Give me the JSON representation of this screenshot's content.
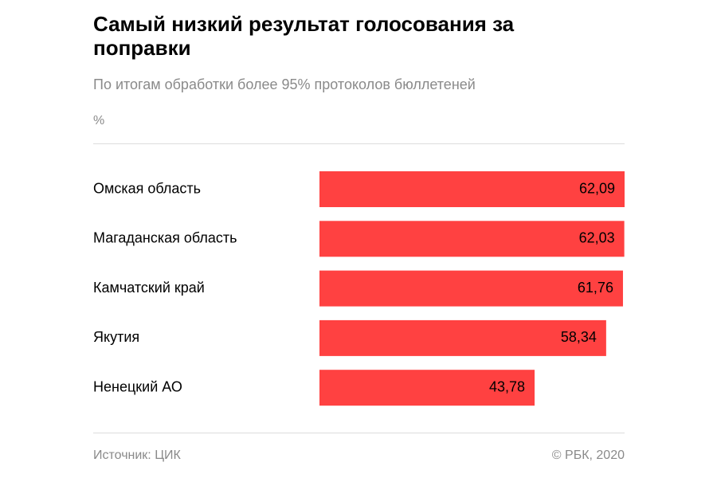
{
  "header": {
    "title": "Самый низкий результат голосования за поправки",
    "subtitle": "По итогам обработки более 95% протоколов бюллетеней",
    "unit": "%"
  },
  "footer": {
    "source": "Источник: ЦИК",
    "copyright": "© РБК, 2020"
  },
  "colors": {
    "bar": "#ff4141",
    "label": "#000000"
  },
  "chart_data": {
    "type": "bar",
    "orientation": "horizontal",
    "title": "Самый низкий результат голосования за поправки",
    "subtitle": "По итогам обработки более 95% протоколов бюллетеней",
    "xlabel": "",
    "ylabel": "%",
    "xlim": [
      0,
      62.09
    ],
    "grid": false,
    "categories": [
      "Омская область",
      "Магаданская область",
      "Камчатский край",
      "Якутия",
      "Ненецкий АО"
    ],
    "values": [
      62.09,
      62.03,
      61.76,
      58.34,
      43.78
    ],
    "value_labels": [
      "62,09",
      "62,03",
      "61,76",
      "58,34",
      "43,78"
    ]
  }
}
